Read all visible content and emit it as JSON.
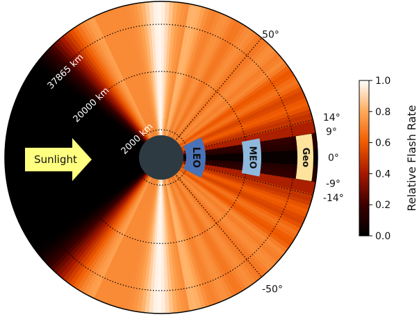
{
  "chart_data": {
    "type": "heatmap",
    "projection": "polar",
    "colormap": "gist_heat",
    "grid": true,
    "colorbar": {
      "label": "Relative Flash Rate",
      "range": [
        0.0,
        1.0
      ],
      "ticks": [
        "0.0",
        "0.2",
        "0.4",
        "0.6",
        "0.8",
        "1.0"
      ],
      "position": "right"
    },
    "angle_ticks": [
      "50°",
      "14°",
      "9°",
      "0°",
      "-9°",
      "-14°",
      "-50°"
    ],
    "radius_labels": [
      "2000 km",
      "20000 km",
      "37865 km"
    ],
    "orbit_regions": [
      {
        "name": "LEO",
        "color": "#4a72b6"
      },
      {
        "name": "MEO",
        "color": "#8fb8dd"
      },
      {
        "name": "Geo",
        "color": "#fde39c"
      }
    ],
    "sun_label": "Sunlight",
    "sun_color": "#ffff80",
    "earth_color": "#2e3a42"
  }
}
